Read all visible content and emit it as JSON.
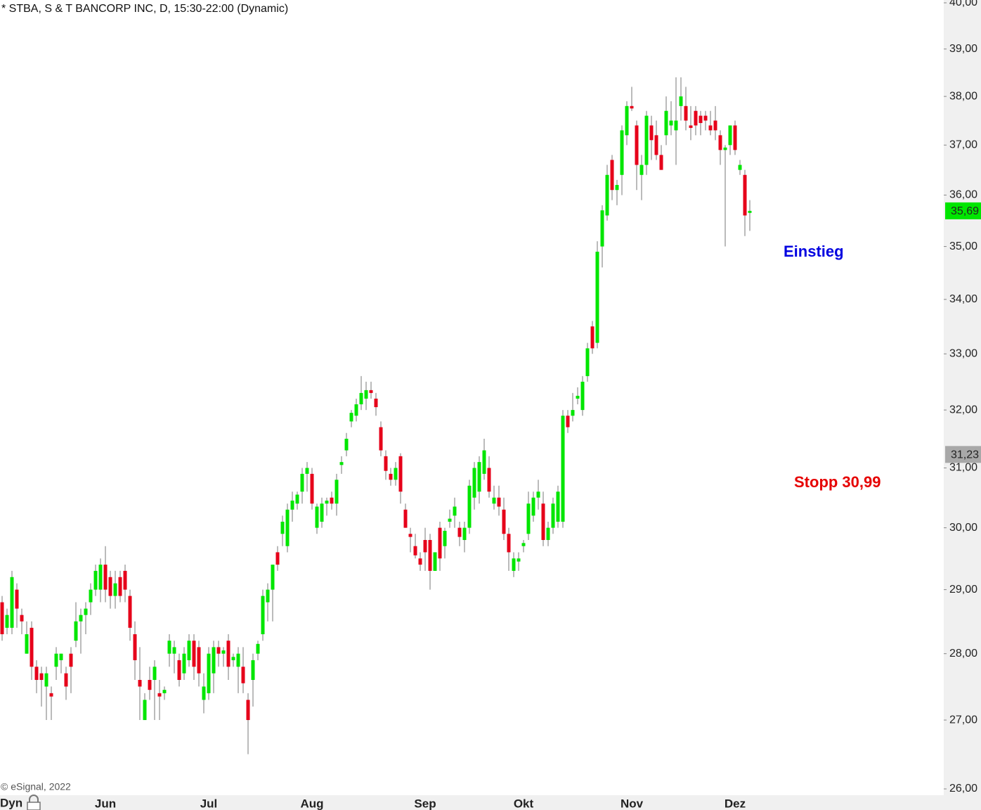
{
  "chart_data": {
    "type": "candlestick",
    "title": "* STBA, S & T BANCORP INC, D, 15:30-22:00 (Dynamic)",
    "source": "© eSignal, 2022",
    "mode_label": "Dyn",
    "log_scale": true,
    "up_color": "#00e600",
    "down_color": "#e6001a",
    "ylim": [
      26,
      40
    ],
    "yticks": [
      {
        "value": 26,
        "label": "26,00"
      },
      {
        "value": 27,
        "label": "27,00"
      },
      {
        "value": 28,
        "label": "28,00"
      },
      {
        "value": 29,
        "label": "29,00"
      },
      {
        "value": 30,
        "label": "30,00"
      },
      {
        "value": 31,
        "label": "31,00"
      },
      {
        "value": 32,
        "label": "32,00"
      },
      {
        "value": 33,
        "label": "33,00"
      },
      {
        "value": 34,
        "label": "34,00"
      },
      {
        "value": 35,
        "label": "35,00"
      },
      {
        "value": 36,
        "label": "36,00"
      },
      {
        "value": 37,
        "label": "37,00"
      },
      {
        "value": 38,
        "label": "38,00"
      },
      {
        "value": 39,
        "label": "39,00"
      },
      {
        "value": 40,
        "label": "40,00"
      }
    ],
    "last_price": {
      "value": 35.69,
      "label": "35,69",
      "color": "#00e600"
    },
    "price_marker": {
      "value": 31.23,
      "label": "31,23",
      "color": "#a8a8a8"
    },
    "annotations": [
      {
        "text": "Einstieg",
        "color": "#0000e0"
      },
      {
        "text": "Stopp 30,99",
        "color": "#e60000"
      }
    ],
    "categories": [
      null,
      null,
      null,
      null,
      null,
      null,
      null,
      null,
      null,
      null,
      null,
      null,
      null,
      null,
      null,
      null,
      null,
      null,
      null,
      null,
      null,
      "Jun",
      null,
      null,
      null,
      null,
      null,
      null,
      null,
      null,
      null,
      null,
      null,
      null,
      null,
      null,
      null,
      null,
      null,
      null,
      null,
      null,
      "Jul",
      null,
      null,
      null,
      null,
      null,
      null,
      null,
      null,
      null,
      null,
      null,
      null,
      null,
      null,
      null,
      null,
      null,
      null,
      null,
      null,
      "Aug",
      null,
      null,
      null,
      null,
      null,
      null,
      null,
      null,
      null,
      null,
      null,
      null,
      null,
      null,
      null,
      null,
      null,
      null,
      null,
      null,
      null,
      null,
      "Sep",
      null,
      null,
      null,
      null,
      null,
      null,
      null,
      null,
      null,
      null,
      null,
      null,
      null,
      null,
      null,
      null,
      null,
      null,
      null,
      "Okt",
      null,
      null,
      null,
      null,
      null,
      null,
      null,
      null,
      null,
      null,
      null,
      null,
      null,
      null,
      null,
      null,
      null,
      null,
      null,
      null,
      null,
      "Nov",
      null,
      null,
      null,
      null,
      null,
      null,
      null,
      null,
      null,
      null,
      null,
      null,
      null,
      null,
      null,
      null,
      null,
      null,
      null,
      null,
      "Dez",
      null,
      null,
      null
    ],
    "open": [
      28.8,
      28.4,
      28.4,
      29.0,
      28.6,
      28.0,
      28.4,
      27.8,
      27.7,
      27.5,
      27.4,
      27.8,
      27.9,
      27.7,
      28.0,
      28.2,
      28.5,
      28.6,
      28.8,
      29.0,
      29.0,
      29.4,
      29.2,
      28.9,
      29.2,
      29.3,
      28.9,
      28.3,
      27.6,
      27.0,
      27.6,
      27.6,
      27.4,
      27.4,
      28.0,
      28.0,
      27.9,
      27.7,
      27.9,
      28.2,
      28.1,
      27.3,
      27.4,
      27.7,
      28.1,
      28.0,
      28.2,
      27.9,
      27.8,
      27.8,
      27.3,
      27.6,
      28.0,
      28.3,
      28.8,
      29.0,
      29.6,
      29.9,
      29.7,
      30.3,
      30.4,
      30.6,
      30.9,
      30.9,
      30.0,
      30.1,
      30.4,
      30.5,
      30.4,
      31.05,
      31.3,
      31.8,
      31.9,
      32.1,
      32.2,
      32.35,
      32.2,
      31.7,
      31.2,
      30.9,
      30.8,
      31.2,
      30.3,
      29.9,
      29.7,
      29.5,
      29.8,
      29.8,
      29.3,
      30.0,
      29.7,
      30.1,
      30.2,
      30.0,
      29.8,
      30.0,
      30.5,
      30.6,
      30.9,
      31.0,
      30.4,
      30.5,
      30.3,
      29.9,
      29.3,
      29.45,
      29.7,
      29.9,
      30.2,
      30.5,
      30.4,
      29.8,
      30.0,
      30.1,
      30.1,
      31.9,
      31.9,
      32.2,
      32.0,
      32.6,
      33.5,
      33.2,
      35.0,
      35.6,
      36.7,
      36.1,
      36.4,
      37.2,
      37.8,
      37.4,
      36.4,
      36.6,
      37.4,
      37.2,
      36.8,
      37.2,
      37.4,
      37.3,
      37.8,
      37.8,
      37.4,
      37.7,
      37.6,
      37.6,
      37.4,
      37.5,
      37.2,
      36.9,
      37.0,
      37.4,
      36.5,
      36.4,
      35.65
    ],
    "high": [
      28.9,
      28.7,
      29.3,
      29.1,
      28.7,
      28.5,
      28.5,
      27.9,
      27.8,
      27.8,
      27.5,
      28.1,
      28.0,
      27.8,
      28.1,
      28.8,
      28.7,
      28.8,
      29.1,
      29.4,
      29.5,
      29.7,
      29.3,
      29.3,
      29.3,
      29.4,
      29.0,
      28.5,
      28.1,
      27.4,
      27.8,
      27.9,
      27.6,
      27.5,
      28.3,
      28.2,
      28.0,
      28.1,
      28.3,
      28.3,
      28.2,
      27.7,
      28.1,
      28.2,
      28.2,
      28.1,
      28.3,
      28.0,
      28.1,
      28.1,
      27.4,
      28.0,
      28.2,
      29.0,
      29.1,
      29.4,
      29.7,
      30.2,
      30.4,
      30.6,
      30.6,
      31.0,
      31.1,
      31.0,
      30.4,
      30.5,
      30.5,
      30.6,
      30.9,
      31.2,
      31.6,
      32.0,
      32.2,
      32.6,
      32.5,
      32.5,
      32.3,
      31.8,
      31.3,
      31.0,
      31.1,
      31.25,
      30.4,
      30.0,
      29.9,
      29.6,
      30.0,
      29.9,
      29.6,
      30.1,
      30.0,
      30.3,
      30.5,
      30.1,
      30.1,
      30.8,
      31.1,
      31.2,
      31.5,
      31.2,
      30.7,
      30.7,
      30.5,
      30.0,
      29.6,
      29.6,
      29.8,
      30.6,
      30.6,
      30.8,
      30.6,
      30.1,
      30.5,
      30.7,
      32.0,
      32.0,
      32.3,
      32.4,
      32.6,
      33.2,
      33.6,
      35.1,
      35.8,
      36.6,
      36.8,
      36.3,
      37.4,
      37.9,
      38.2,
      37.5,
      36.8,
      37.7,
      37.6,
      37.5,
      37.0,
      38.0,
      37.9,
      38.4,
      38.4,
      38.2,
      37.8,
      37.8,
      37.7,
      37.7,
      37.7,
      37.8,
      37.3,
      37.0,
      37.4,
      37.5,
      36.7,
      36.5,
      35.9
    ],
    "low": [
      28.2,
      28.3,
      28.3,
      28.4,
      28.3,
      28.0,
      27.6,
      27.4,
      27.2,
      27.0,
      27.0,
      27.6,
      27.7,
      27.3,
      27.4,
      28.1,
      28.0,
      28.3,
      28.6,
      28.9,
      28.8,
      28.8,
      28.7,
      28.7,
      28.8,
      28.8,
      28.2,
      27.6,
      27.0,
      27.0,
      27.3,
      27.0,
      27.0,
      27.3,
      27.8,
      27.7,
      27.5,
      27.6,
      27.8,
      27.6,
      27.5,
      27.1,
      27.3,
      27.4,
      27.8,
      27.8,
      27.6,
      27.8,
      27.4,
      27.4,
      26.5,
      27.2,
      27.9,
      28.2,
      28.5,
      28.5,
      29.3,
      29.7,
      29.6,
      30.1,
      30.3,
      30.4,
      30.6,
      30.3,
      29.9,
      30.0,
      30.2,
      30.3,
      30.2,
      30.9,
      31.2,
      31.7,
      31.8,
      32.0,
      32.0,
      32.2,
      31.9,
      31.2,
      30.8,
      30.7,
      30.7,
      30.4,
      30.0,
      29.6,
      29.5,
      29.3,
      29.3,
      29.0,
      29.3,
      29.3,
      29.5,
      30.0,
      30.0,
      29.7,
      29.6,
      29.9,
      30.3,
      30.4,
      30.8,
      30.5,
      30.3,
      30.2,
      29.8,
      29.3,
      29.2,
      29.3,
      29.6,
      29.8,
      30.1,
      30.3,
      29.7,
      29.7,
      29.9,
      30.0,
      30.0,
      31.6,
      31.8,
      32.1,
      31.9,
      32.5,
      33.0,
      33.1,
      34.6,
      35.5,
      35.9,
      35.8,
      36.0,
      37.0,
      37.7,
      36.1,
      35.9,
      36.4,
      36.7,
      36.7,
      36.5,
      37.0,
      37.2,
      36.6,
      37.5,
      37.3,
      37.1,
      37.2,
      37.2,
      37.3,
      37.2,
      37.1,
      36.6,
      35.0,
      36.8,
      36.8,
      36.4,
      35.2,
      35.3
    ],
    "close": [
      28.3,
      28.6,
      29.2,
      28.7,
      28.5,
      28.3,
      27.8,
      27.6,
      27.6,
      27.7,
      27.35,
      28.0,
      28.0,
      27.5,
      27.8,
      28.5,
      28.6,
      28.7,
      29.0,
      29.3,
      29.4,
      29.0,
      28.9,
      29.1,
      28.9,
      29.0,
      28.4,
      27.9,
      27.5,
      27.3,
      27.45,
      27.8,
      27.35,
      27.45,
      28.2,
      28.1,
      27.6,
      28.0,
      28.2,
      27.8,
      27.7,
      27.5,
      28.0,
      28.1,
      28.0,
      28.05,
      27.8,
      27.95,
      28.0,
      27.55,
      27.0,
      27.9,
      28.15,
      28.9,
      29.0,
      29.4,
      29.4,
      30.1,
      30.3,
      30.45,
      30.55,
      30.9,
      31.0,
      30.4,
      30.35,
      30.4,
      30.45,
      30.4,
      30.8,
      31.1,
      31.5,
      31.95,
      32.1,
      32.3,
      32.35,
      32.3,
      32.05,
      31.3,
      30.95,
      30.8,
      31.0,
      30.6,
      30.0,
      29.85,
      29.55,
      29.4,
      29.6,
      29.3,
      29.6,
      29.5,
      29.95,
      30.15,
      30.35,
      29.85,
      30.0,
      30.7,
      31.0,
      31.1,
      31.3,
      30.6,
      30.5,
      30.35,
      29.9,
      29.6,
      29.5,
      29.5,
      29.75,
      30.4,
      30.5,
      30.6,
      29.8,
      30.0,
      30.4,
      30.6,
      31.9,
      31.7,
      32.0,
      32.25,
      32.5,
      33.1,
      33.1,
      34.9,
      35.7,
      36.4,
      36.1,
      36.2,
      37.3,
      37.8,
      37.75,
      36.6,
      36.6,
      37.6,
      37.1,
      36.8,
      36.5,
      37.7,
      37.5,
      37.5,
      38.0,
      37.5,
      37.35,
      37.4,
      37.45,
      37.5,
      37.3,
      37.3,
      36.9,
      36.95,
      37.4,
      36.9,
      36.6,
      35.6,
      35.69
    ]
  }
}
